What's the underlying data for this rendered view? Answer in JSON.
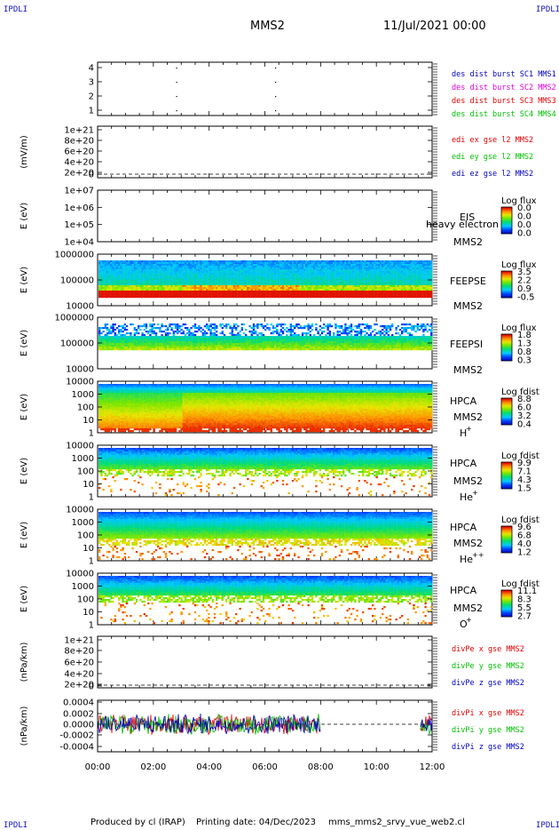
{
  "corners": {
    "tl": "IPDLI",
    "tr": "IPDLI",
    "bl": "IPDLI",
    "br": "IPDLI"
  },
  "header": {
    "mission": "MMS2",
    "date": "11/Jul/2021 00:00"
  },
  "footer": {
    "produced": "Produced by cl (IRAP)",
    "printed": "Printing date: 04/Dec/2023",
    "file": "mms_mms2_srvy_vue_web2.cl"
  },
  "colors": {
    "red": "#e00000",
    "magenta": "#e000e0",
    "green": "#00c000",
    "blue": "#0000c0",
    "black": "#000000"
  },
  "chart_data": [
    {
      "type": "scatter",
      "id": "burst",
      "ytick_labels": [
        "4",
        "3",
        "2",
        "1"
      ],
      "series": [
        {
          "name": "des dist burst SC1 MMS1",
          "color": "#0000c0"
        },
        {
          "name": "des dist burst SC2 MMS2",
          "color": "#e000e0"
        },
        {
          "name": "des dist burst SC3 MMS3",
          "color": "#e00000"
        },
        {
          "name": "des dist burst SC4 MMS4",
          "color": "#00c000"
        }
      ],
      "points": [
        {
          "x": "02:49",
          "y": 4
        },
        {
          "x": "02:49",
          "y": 3
        },
        {
          "x": "02:49",
          "y": 2
        },
        {
          "x": "02:49",
          "y": 1
        },
        {
          "x": "06:22",
          "y": 4
        },
        {
          "x": "06:22",
          "y": 3
        },
        {
          "x": "06:22",
          "y": 2
        },
        {
          "x": "06:22",
          "y": 1
        }
      ]
    },
    {
      "type": "line",
      "id": "edi",
      "ylabel": "(mV/m)",
      "ytick_labels": [
        "1e+21",
        "8e+20",
        "6e+20",
        "4e+20",
        "2e+20",
        "0"
      ],
      "series": [
        {
          "name": "edi ex gse l2 MMS2",
          "color": "#e00000"
        },
        {
          "name": "edi ey gse l2 MMS2",
          "color": "#00c000"
        },
        {
          "name": "edi ez gse l2 MMS2",
          "color": "#0000c0"
        }
      ]
    },
    {
      "type": "heatmap",
      "id": "eis",
      "ylabel": "E (eV)",
      "ytick_labels": [
        "1e+07",
        "1e+06",
        "1e+05",
        "1e+04"
      ],
      "instrument": "EIS",
      "instrument_sub": "heavy electron to",
      "sc": "MMS2",
      "cbar_title": "Log flux",
      "cbar_ticks": [
        "0.0",
        "0.0",
        "0.0",
        "0.0"
      ]
    },
    {
      "type": "heatmap",
      "id": "feepse",
      "ylabel": "E (eV)",
      "ytick_labels": [
        "1000000",
        "100000",
        "10000"
      ],
      "instrument": "FEEPSE",
      "sc": "MMS2",
      "cbar_title": "Log flux",
      "cbar_ticks": [
        "3.5",
        "2.2",
        "0.9",
        "-0.5"
      ]
    },
    {
      "type": "heatmap",
      "id": "feepsi",
      "ylabel": "E (eV)",
      "ytick_labels": [
        "1000000",
        "100000",
        "10000"
      ],
      "instrument": "FEEPSI",
      "sc": "MMS2",
      "cbar_title": "Log flux",
      "cbar_ticks": [
        "1.8",
        "1.3",
        "0.8",
        "0.3"
      ]
    },
    {
      "type": "heatmap",
      "id": "hpca-h",
      "ylabel": "E (eV)",
      "ytick_labels": [
        "10000",
        "1000",
        "100",
        "10",
        "1"
      ],
      "instrument": "HPCA",
      "sc": "MMS2",
      "species": "H",
      "charge": "+",
      "cbar_title": "Log fdist",
      "cbar_ticks": [
        "8.8",
        "6.0",
        "3.2",
        "0.4"
      ]
    },
    {
      "type": "heatmap",
      "id": "hpca-he1",
      "ylabel": "E (eV)",
      "ytick_labels": [
        "10000",
        "1000",
        "100",
        "10",
        "1"
      ],
      "instrument": "HPCA",
      "sc": "MMS2",
      "species": "He",
      "charge": "+",
      "cbar_title": "Log fdist",
      "cbar_ticks": [
        "9.9",
        "7.1",
        "4.3",
        "1.5"
      ]
    },
    {
      "type": "heatmap",
      "id": "hpca-he2",
      "ylabel": "E (eV)",
      "ytick_labels": [
        "10000",
        "1000",
        "100",
        "10",
        "1"
      ],
      "instrument": "HPCA",
      "sc": "MMS2",
      "species": "He",
      "charge": "++",
      "cbar_title": "Log fdist",
      "cbar_ticks": [
        "9.6",
        "6.8",
        "4.0",
        "1.2"
      ]
    },
    {
      "type": "heatmap",
      "id": "hpca-o",
      "ylabel": "E (eV)",
      "ytick_labels": [
        "10000",
        "1000",
        "100",
        "10",
        "1"
      ],
      "instrument": "HPCA",
      "sc": "MMS2",
      "species": "O",
      "charge": "+",
      "cbar_title": "Log fdist",
      "cbar_ticks": [
        "11.1",
        "8.3",
        "5.5",
        "2.7"
      ]
    },
    {
      "type": "line",
      "id": "divpe",
      "ylabel": "(nPa/km)",
      "ytick_labels": [
        "1e+21",
        "8e+20",
        "6e+20",
        "4e+20",
        "2e+20",
        "0"
      ],
      "series": [
        {
          "name": "divPe x gse MMS2",
          "color": "#e00000"
        },
        {
          "name": "divPe y gse MMS2",
          "color": "#00c000"
        },
        {
          "name": "divPe z gse MMS2",
          "color": "#0000c0"
        }
      ]
    },
    {
      "type": "line",
      "id": "divpi",
      "ylabel": "(nPa/km)",
      "ytick_labels": [
        "0.0004",
        "0.0002",
        "0.0000",
        "-0.0002",
        "-0.0004"
      ],
      "ylim": [
        -0.0004,
        0.0004
      ],
      "data_ranges": [
        [
          "00:00",
          "08:00"
        ],
        [
          "11:35",
          "12:00"
        ]
      ],
      "series": [
        {
          "name": "divPi x gse MMS2",
          "color": "#e00000"
        },
        {
          "name": "divPi y gse MMS2",
          "color": "#00c000"
        },
        {
          "name": "divPi z gse MMS2",
          "color": "#0000c0"
        }
      ]
    }
  ],
  "x_axis": {
    "ticks": [
      "00:00",
      "02:00",
      "04:00",
      "06:00",
      "08:00",
      "10:00",
      "12:00"
    ]
  }
}
